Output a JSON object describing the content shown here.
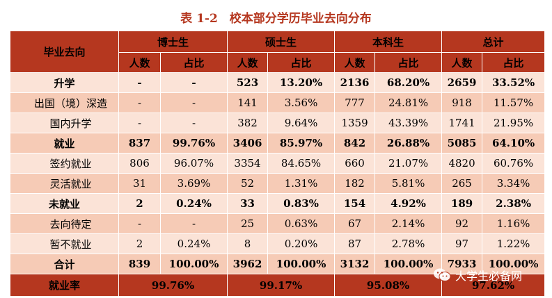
{
  "title": "表 1-2　校本部分学历毕业去向分布",
  "header": {
    "row_label": "毕业去向",
    "groups": [
      "博士生",
      "硕士生",
      "本科生",
      "总计"
    ],
    "count_label": "人数",
    "ratio_label": "占比"
  },
  "rows": [
    {
      "label": "升学",
      "cells": [
        "-",
        "-",
        "523",
        "13.20%",
        "2136",
        "68.20%",
        "2659",
        "33.52%"
      ]
    },
    {
      "label": "出国（境）深造",
      "cells": [
        "-",
        "-",
        "141",
        "3.56%",
        "777",
        "24.81%",
        "918",
        "11.57%"
      ]
    },
    {
      "label": "国内升学",
      "cells": [
        "-",
        "-",
        "382",
        "9.64%",
        "1359",
        "43.39%",
        "1741",
        "21.95%"
      ]
    },
    {
      "label": "就业",
      "cells": [
        "837",
        "99.76%",
        "3406",
        "85.97%",
        "842",
        "26.88%",
        "5085",
        "64.10%"
      ]
    },
    {
      "label": "签约就业",
      "cells": [
        "806",
        "96.07%",
        "3354",
        "84.65%",
        "660",
        "21.07%",
        "4820",
        "60.76%"
      ]
    },
    {
      "label": "灵活就业",
      "cells": [
        "31",
        "3.69%",
        "52",
        "1.31%",
        "182",
        "5.81%",
        "265",
        "3.34%"
      ]
    },
    {
      "label": "未就业",
      "cells": [
        "2",
        "0.24%",
        "33",
        "0.83%",
        "154",
        "4.92%",
        "189",
        "2.38%"
      ]
    },
    {
      "label": "去向待定",
      "cells": [
        "-",
        "-",
        "25",
        "0.63%",
        "67",
        "2.14%",
        "92",
        "1.16%"
      ]
    },
    {
      "label": "暂不就业",
      "cells": [
        "2",
        "0.24%",
        "8",
        "0.20%",
        "87",
        "2.78%",
        "97",
        "1.22%"
      ]
    },
    {
      "label": "合计",
      "cells": [
        "839",
        "100.00%",
        "3962",
        "100.00%",
        "3132",
        "100.00%",
        "7933",
        "100.00%"
      ]
    }
  ],
  "employment_rate": {
    "label": "就业率",
    "values": [
      "99.76%",
      "99.17%",
      "95.08%",
      "97.62%"
    ]
  },
  "watermark": {
    "text": "大学生必备网",
    "icon": "wechat-icon"
  },
  "colors": {
    "header": "#b5371f",
    "row_light": "#fbe3d7",
    "row_mid": "#f6cbb6"
  }
}
